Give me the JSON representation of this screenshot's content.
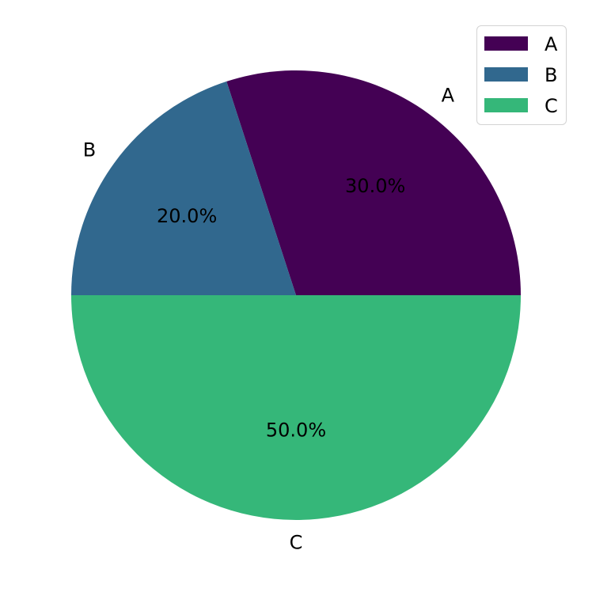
{
  "chart_data": {
    "type": "pie",
    "categories": [
      "A",
      "B",
      "C"
    ],
    "values": [
      30,
      20,
      50
    ],
    "percent_labels": [
      "30.0%",
      "20.0%",
      "50.0%"
    ],
    "colors": [
      "#440154",
      "#31688e",
      "#35b779"
    ],
    "start_angle_deg": 0,
    "direction": "counterclockwise",
    "legend": {
      "entries": [
        "A",
        "B",
        "C"
      ],
      "placement": "top-right"
    }
  }
}
